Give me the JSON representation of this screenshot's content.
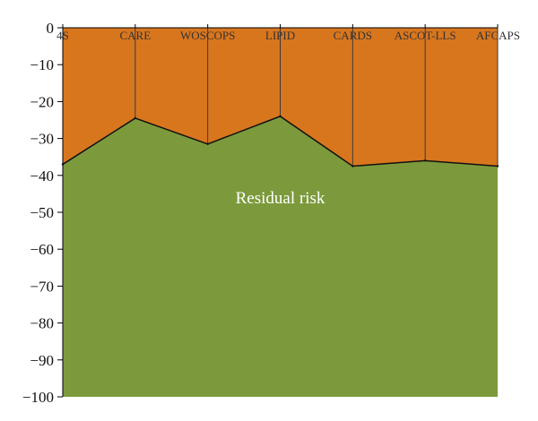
{
  "chart_data": {
    "type": "area",
    "categories": [
      "4S",
      "CARE",
      "WOSCOPS",
      "LIPID",
      "CARDS",
      "ASCOT-LLS",
      "AFCAPS"
    ],
    "series": [
      {
        "name": "",
        "values": [
          -37,
          -24.5,
          -31.5,
          -24,
          -37.5,
          -36,
          -37.5
        ],
        "color": "#7c9a3c"
      }
    ],
    "annotations": [
      {
        "text": "Residual risk",
        "category": "LIPID",
        "value": -50
      }
    ],
    "title": "",
    "xlabel": "",
    "ylabel": "",
    "ylim": [
      -100,
      0
    ],
    "yticks": [
      0,
      -10,
      -20,
      -30,
      -40,
      -50,
      -60,
      -70,
      -80,
      -90,
      -100
    ],
    "grid": false,
    "legend": "none",
    "colors": {
      "upper_area": "#d8761e",
      "lower_area": "#7c9a3c",
      "boundary_line": "#111111",
      "divider_lines": "#3a3a3a",
      "axis": "#000000"
    }
  }
}
